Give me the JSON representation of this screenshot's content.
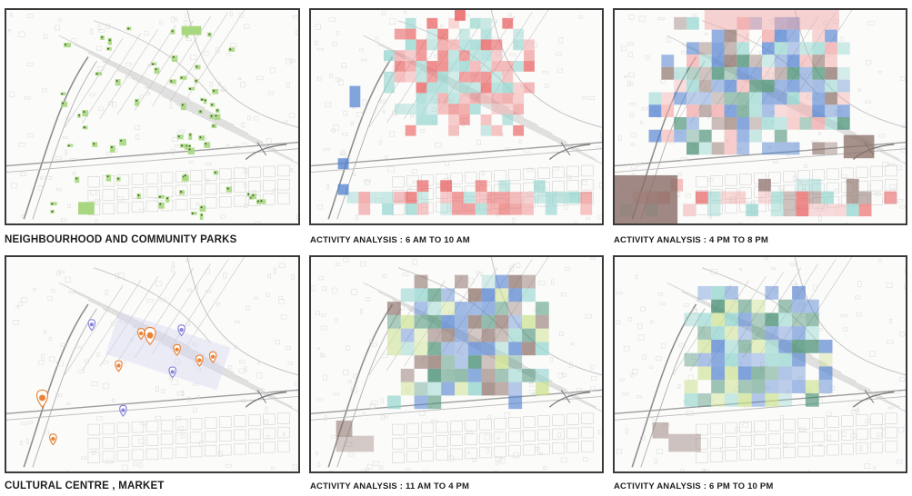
{
  "panels": [
    {
      "id": "parks",
      "caption": "NEIGHBOURHOOD AND COMMUNITY PARKS",
      "layer": "parks"
    },
    {
      "id": "am",
      "caption": "ACTIVITY ANALYSIS : 6 AM TO 10 AM",
      "layer": "heat-am"
    },
    {
      "id": "pm",
      "caption": "ACTIVITY ANALYSIS : 4 PM TO 8 PM",
      "layer": "heat-pm"
    },
    {
      "id": "culture",
      "caption": "CULTURAL CENTRE , MARKET",
      "layer": "markers"
    },
    {
      "id": "noon",
      "caption": "ACTIVITY ANALYSIS : 11 AM TO 4 PM",
      "layer": "heat-noon"
    },
    {
      "id": "night",
      "caption": "ACTIVITY ANALYSIS : 6 PM TO 10 PM",
      "layer": "heat-night"
    }
  ],
  "colors": {
    "base_lines": "#c4c4c4",
    "park_green": "#a9d77f",
    "heat_red": "#e85b5b",
    "heat_pink": "#f2a7a7",
    "heat_teal": "#8fd3cc",
    "heat_blue": "#4f7fcf",
    "heat_green": "#3f8a6e",
    "heat_lime": "#c9e08a",
    "heat_brown": "#8a6d66",
    "marker_orange": "#e8843a",
    "marker_purple": "#8a86d8"
  },
  "icons": {
    "map_marker": "map-pin-icon",
    "park_dot": "park-dot-icon"
  }
}
